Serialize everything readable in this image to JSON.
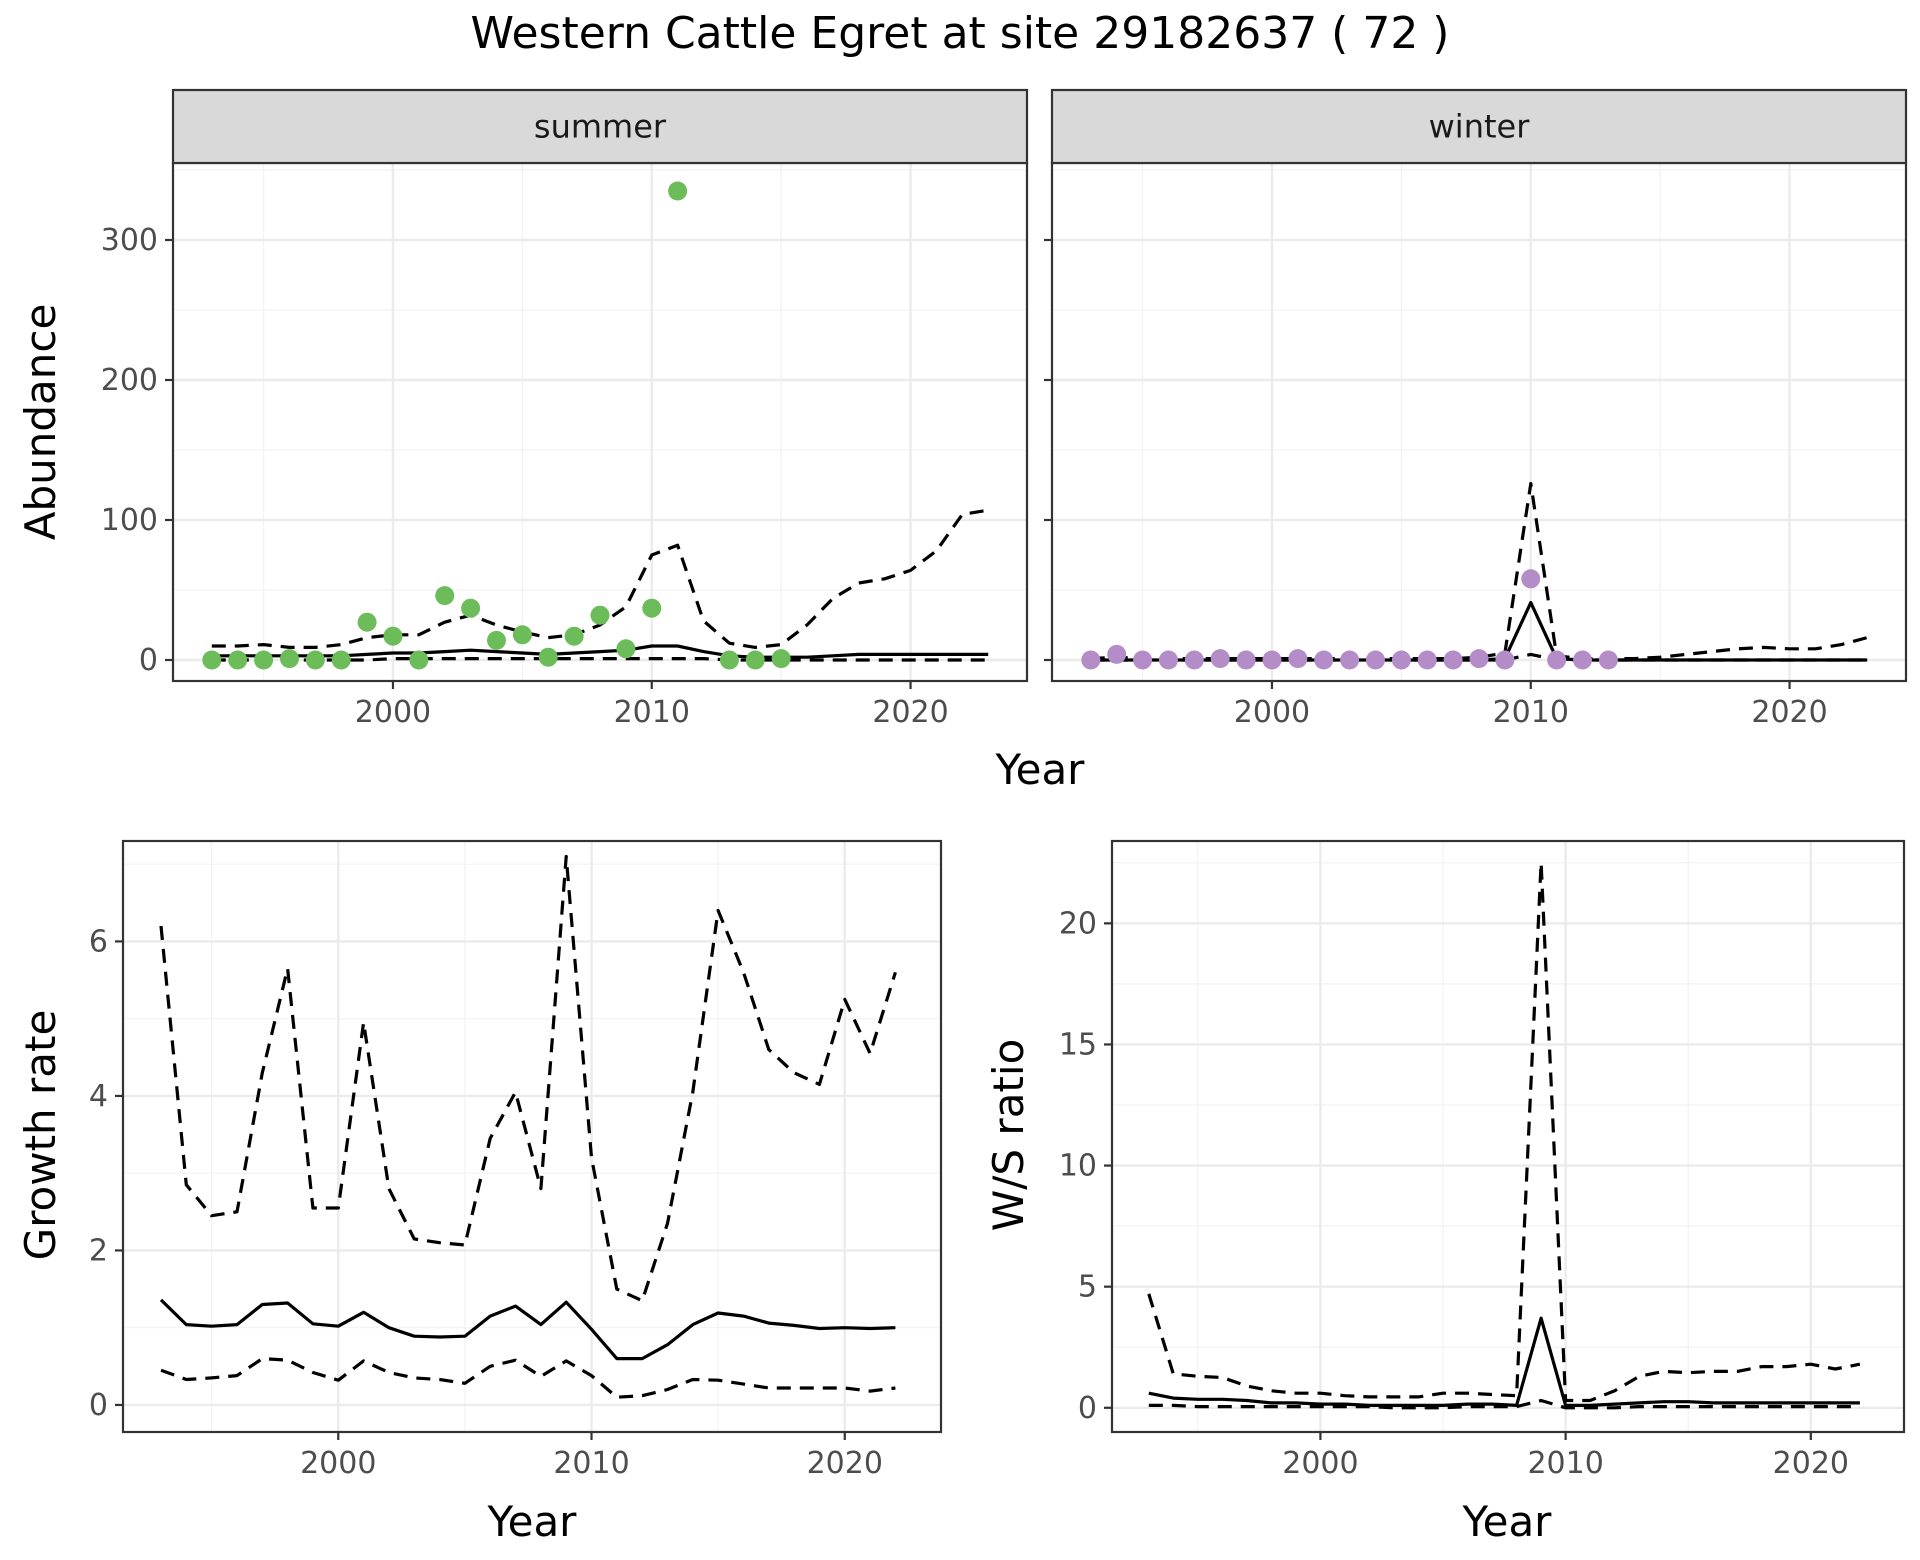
{
  "figure_title": "Western Cattle Egret at site 29182637 ( 72 )",
  "colors": {
    "summer_points": "#6cbd5a",
    "winter_points": "#b48cc8",
    "lines": "#000000",
    "strip_fill": "#d9d9d9",
    "panel_border": "#333333",
    "grid": "#ebebeb"
  },
  "chart_data": [
    {
      "type": "scatter",
      "panel": "summer",
      "strip_label": "summer",
      "xlabel": "Year",
      "ylabel": "Abundance",
      "xlim": [
        1991.5,
        2024.5
      ],
      "ylim": [
        -15,
        355
      ],
      "xticks": [
        2000,
        2010,
        2020
      ],
      "yticks": [
        0,
        100,
        200,
        300
      ],
      "grid": true,
      "points": {
        "x": [
          1993,
          1994,
          1995,
          1996,
          1997,
          1998,
          1999,
          2000,
          2001,
          2002,
          2003,
          2004,
          2005,
          2006,
          2007,
          2008,
          2009,
          2010,
          2011,
          2013,
          2014,
          2015
        ],
        "y": [
          0,
          0,
          0,
          1,
          0,
          0,
          27,
          17,
          0,
          46,
          37,
          14,
          18,
          2,
          17,
          32,
          8,
          37,
          335,
          0,
          0,
          1
        ]
      },
      "series": [
        {
          "style": "solid",
          "x": [
            1993,
            1994,
            1995,
            1996,
            1997,
            1998,
            1999,
            2000,
            2001,
            2002,
            2003,
            2004,
            2005,
            2006,
            2007,
            2008,
            2009,
            2010,
            2011,
            2012,
            2013,
            2014,
            2015,
            2016,
            2017,
            2018,
            2019,
            2020,
            2021,
            2022,
            2023
          ],
          "y": [
            3,
            3,
            3,
            3,
            3,
            3,
            4,
            5,
            5,
            6,
            7,
            6,
            5,
            4,
            5,
            6,
            7,
            10,
            10,
            6,
            3,
            2,
            2,
            2,
            3,
            4,
            4,
            4,
            4,
            4,
            4
          ]
        },
        {
          "style": "dashed",
          "x": [
            1993,
            1994,
            1995,
            1996,
            1997,
            1998,
            1999,
            2000,
            2001,
            2002,
            2003,
            2004,
            2005,
            2006,
            2007,
            2008,
            2009,
            2010,
            2011,
            2012,
            2013,
            2014,
            2015,
            2016,
            2017,
            2018,
            2019,
            2020,
            2021,
            2022,
            2023
          ],
          "y": [
            10,
            10,
            11,
            9,
            9,
            11,
            16,
            18,
            18,
            27,
            32,
            25,
            20,
            16,
            18,
            25,
            38,
            75,
            82,
            28,
            12,
            9,
            11,
            25,
            44,
            55,
            58,
            64,
            78,
            104,
            107
          ]
        },
        {
          "style": "dashed",
          "x": [
            1993,
            1994,
            1995,
            1996,
            1997,
            1998,
            1999,
            2000,
            2001,
            2002,
            2003,
            2004,
            2005,
            2006,
            2007,
            2008,
            2009,
            2010,
            2011,
            2012,
            2013,
            2014,
            2015,
            2016,
            2017,
            2018,
            2019,
            2020,
            2021,
            2022,
            2023
          ],
          "y": [
            0,
            0,
            0,
            0,
            0,
            0,
            0,
            1,
            1,
            1,
            1,
            1,
            1,
            1,
            1,
            1,
            1,
            1,
            1,
            1,
            0,
            0,
            0,
            0,
            0,
            0,
            0,
            0,
            0,
            0,
            0
          ]
        }
      ]
    },
    {
      "type": "scatter",
      "panel": "winter",
      "strip_label": "winter",
      "xlabel": "Year",
      "ylabel": "Abundance",
      "xlim": [
        1991.5,
        2024.5
      ],
      "ylim": [
        -15,
        355
      ],
      "xticks": [
        2000,
        2010,
        2020
      ],
      "yticks": [
        0,
        100,
        200,
        300
      ],
      "grid": true,
      "points": {
        "x": [
          1993,
          1994,
          1995,
          1996,
          1997,
          1998,
          1999,
          2000,
          2001,
          2002,
          2003,
          2004,
          2005,
          2006,
          2007,
          2008,
          2009,
          2010,
          2011,
          2012,
          2013
        ],
        "y": [
          0,
          4,
          0,
          0,
          0,
          1,
          0,
          0,
          1,
          0,
          0,
          0,
          0,
          0,
          0,
          1,
          0,
          58,
          0,
          0,
          0
        ]
      },
      "series": [
        {
          "style": "solid",
          "x": [
            1993,
            1994,
            1995,
            1996,
            1997,
            1998,
            1999,
            2000,
            2001,
            2002,
            2003,
            2004,
            2005,
            2006,
            2007,
            2008,
            2009,
            2010,
            2011,
            2012,
            2013,
            2014,
            2015,
            2016,
            2017,
            2018,
            2019,
            2020,
            2021,
            2022,
            2023
          ],
          "y": [
            0,
            0,
            0,
            0,
            0,
            0,
            0,
            0,
            0,
            0,
            0,
            0,
            0,
            0,
            0,
            0,
            1,
            41,
            1,
            0,
            0,
            0,
            0,
            0,
            0,
            0,
            0,
            0,
            0,
            0,
            0
          ]
        },
        {
          "style": "dashed",
          "x": [
            1993,
            1994,
            1995,
            1996,
            1997,
            1998,
            1999,
            2000,
            2001,
            2002,
            2003,
            2004,
            2005,
            2006,
            2007,
            2008,
            2009,
            2010,
            2011,
            2012,
            2013,
            2014,
            2015,
            2016,
            2017,
            2018,
            2019,
            2020,
            2021,
            2022,
            2023
          ],
          "y": [
            1,
            2,
            1,
            1,
            1,
            1,
            1,
            1,
            1,
            1,
            1,
            1,
            1,
            1,
            1,
            2,
            5,
            126,
            3,
            1,
            1,
            1,
            2,
            4,
            6,
            8,
            9,
            8,
            8,
            11,
            16
          ]
        },
        {
          "style": "dashed",
          "x": [
            1993,
            1994,
            1995,
            1996,
            1997,
            1998,
            1999,
            2000,
            2001,
            2002,
            2003,
            2004,
            2005,
            2006,
            2007,
            2008,
            2009,
            2010,
            2011,
            2012,
            2013,
            2014,
            2015,
            2016,
            2017,
            2018,
            2019,
            2020,
            2021,
            2022,
            2023
          ],
          "y": [
            0,
            0,
            0,
            0,
            0,
            0,
            0,
            0,
            0,
            0,
            0,
            0,
            0,
            0,
            0,
            0,
            0,
            4,
            0,
            0,
            0,
            0,
            0,
            0,
            0,
            0,
            0,
            0,
            0,
            0,
            0
          ]
        }
      ]
    },
    {
      "type": "line",
      "panel": "growth",
      "xlabel": "Year",
      "ylabel": "Growth rate",
      "xlim": [
        1991.5,
        2023.8
      ],
      "ylim": [
        -0.35,
        7.3
      ],
      "xticks": [
        2000,
        2010,
        2020
      ],
      "yticks": [
        0,
        2,
        4,
        6
      ],
      "grid": true,
      "series": [
        {
          "style": "solid",
          "x": [
            1993,
            1994,
            1995,
            1996,
            1997,
            1998,
            1999,
            2000,
            2001,
            2002,
            2003,
            2004,
            2005,
            2006,
            2007,
            2008,
            2009,
            2010,
            2011,
            2012,
            2013,
            2014,
            2015,
            2016,
            2017,
            2018,
            2019,
            2020,
            2021,
            2022
          ],
          "y": [
            1.36,
            1.04,
            1.02,
            1.04,
            1.3,
            1.32,
            1.05,
            1.02,
            1.2,
            1.0,
            0.89,
            0.88,
            0.89,
            1.15,
            1.28,
            1.04,
            1.33,
            0.98,
            0.6,
            0.6,
            0.78,
            1.04,
            1.19,
            1.15,
            1.06,
            1.03,
            0.99,
            1.0,
            0.99,
            1.0
          ]
        },
        {
          "style": "dashed",
          "x": [
            1993,
            1994,
            1995,
            1996,
            1997,
            1998,
            1999,
            2000,
            2001,
            2002,
            2003,
            2004,
            2005,
            2006,
            2007,
            2008,
            2009,
            2010,
            2011,
            2012,
            2013,
            2014,
            2015,
            2016,
            2017,
            2018,
            2019,
            2020,
            2021,
            2022
          ],
          "y": [
            6.2,
            2.85,
            2.45,
            2.5,
            4.3,
            5.65,
            2.55,
            2.55,
            4.95,
            2.8,
            2.15,
            2.1,
            2.07,
            3.45,
            4.05,
            2.8,
            7.1,
            3.2,
            1.5,
            1.35,
            2.35,
            4.05,
            6.4,
            5.6,
            4.6,
            4.3,
            4.15,
            5.25,
            4.55,
            5.6
          ]
        },
        {
          "style": "dashed",
          "x": [
            1993,
            1994,
            1995,
            1996,
            1997,
            1998,
            1999,
            2000,
            2001,
            2002,
            2003,
            2004,
            2005,
            2006,
            2007,
            2008,
            2009,
            2010,
            2011,
            2012,
            2013,
            2014,
            2015,
            2016,
            2017,
            2018,
            2019,
            2020,
            2021,
            2022
          ],
          "y": [
            0.45,
            0.33,
            0.35,
            0.38,
            0.6,
            0.58,
            0.42,
            0.32,
            0.57,
            0.42,
            0.35,
            0.33,
            0.28,
            0.5,
            0.58,
            0.37,
            0.57,
            0.38,
            0.1,
            0.12,
            0.2,
            0.33,
            0.32,
            0.27,
            0.22,
            0.22,
            0.22,
            0.22,
            0.18,
            0.22
          ]
        }
      ]
    },
    {
      "type": "line",
      "panel": "ratio",
      "xlabel": "Year",
      "ylabel": "W/S ratio",
      "xlim": [
        1991.5,
        2023.8
      ],
      "ylim": [
        -1.0,
        23.4
      ],
      "xticks": [
        2000,
        2010,
        2020
      ],
      "yticks": [
        0,
        5,
        10,
        15,
        20
      ],
      "grid": true,
      "series": [
        {
          "style": "solid",
          "x": [
            1993,
            1994,
            1995,
            1996,
            1997,
            1998,
            1999,
            2000,
            2001,
            2002,
            2003,
            2004,
            2005,
            2006,
            2007,
            2008,
            2009,
            2010,
            2011,
            2012,
            2013,
            2014,
            2015,
            2016,
            2017,
            2018,
            2019,
            2020,
            2021,
            2022
          ],
          "y": [
            0.6,
            0.4,
            0.35,
            0.35,
            0.3,
            0.2,
            0.2,
            0.15,
            0.15,
            0.1,
            0.1,
            0.1,
            0.1,
            0.15,
            0.15,
            0.1,
            3.7,
            0.1,
            0.1,
            0.15,
            0.2,
            0.25,
            0.25,
            0.2,
            0.2,
            0.2,
            0.2,
            0.2,
            0.2,
            0.2
          ]
        },
        {
          "style": "dashed",
          "x": [
            1993,
            1994,
            1995,
            1996,
            1997,
            1998,
            1999,
            2000,
            2001,
            2002,
            2003,
            2004,
            2005,
            2006,
            2007,
            2008,
            2009,
            2010,
            2011,
            2012,
            2013,
            2014,
            2015,
            2016,
            2017,
            2018,
            2019,
            2020,
            2021,
            2022
          ],
          "y": [
            4.7,
            1.4,
            1.3,
            1.25,
            0.9,
            0.7,
            0.6,
            0.6,
            0.5,
            0.45,
            0.45,
            0.45,
            0.6,
            0.6,
            0.55,
            0.5,
            22.5,
            0.3,
            0.3,
            0.7,
            1.3,
            1.5,
            1.45,
            1.5,
            1.5,
            1.7,
            1.7,
            1.8,
            1.6,
            1.8
          ]
        },
        {
          "style": "dashed",
          "x": [
            1993,
            1994,
            1995,
            1996,
            1997,
            1998,
            1999,
            2000,
            2001,
            2002,
            2003,
            2004,
            2005,
            2006,
            2007,
            2008,
            2009,
            2010,
            2011,
            2012,
            2013,
            2014,
            2015,
            2016,
            2017,
            2018,
            2019,
            2020,
            2021,
            2022
          ],
          "y": [
            0.1,
            0.1,
            0.05,
            0.05,
            0.05,
            0.05,
            0.05,
            0.05,
            0.05,
            0.05,
            0.0,
            0.0,
            0.0,
            0.05,
            0.05,
            0.05,
            0.3,
            0.0,
            0.0,
            0.0,
            0.05,
            0.05,
            0.05,
            0.05,
            0.05,
            0.05,
            0.05,
            0.05,
            0.05,
            0.05
          ]
        }
      ]
    }
  ]
}
